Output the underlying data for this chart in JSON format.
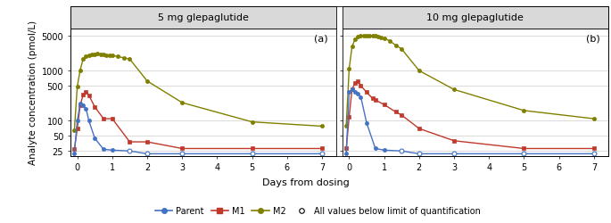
{
  "panel_a_title": "5 mg glepaglutide",
  "panel_b_title": "10 mg glepaglutide",
  "panel_a_label": "(a)",
  "panel_b_label": "(b)",
  "ylabel": "Analyte concentration (pmol/L)",
  "xlabel": "Days from dosing",
  "ylim_log": [
    20,
    7000
  ],
  "yticks": [
    25,
    50,
    100,
    500,
    1000,
    5000
  ],
  "ytick_labels": [
    "25",
    "50",
    "100",
    "500",
    "1000",
    "5000"
  ],
  "xlim": [
    -0.2,
    7.4
  ],
  "xticks": [
    0,
    1,
    2,
    3,
    4,
    5,
    6,
    7
  ],
  "colors": {
    "parent": "#4472C4",
    "M1": "#C0392B",
    "M2": "#808000"
  },
  "panel_a": {
    "parent_x": [
      -0.083,
      0.0,
      0.083,
      0.167,
      0.25,
      0.333,
      0.5,
      0.75,
      1.0,
      1.5,
      2.0,
      3.0,
      5.0,
      7.0
    ],
    "parent_y": [
      22,
      100,
      220,
      200,
      175,
      100,
      45,
      27,
      26,
      25,
      22,
      22,
      22,
      22
    ],
    "parent_open": [
      false,
      false,
      false,
      false,
      false,
      false,
      false,
      false,
      false,
      true,
      true,
      true,
      true,
      true
    ],
    "M1_x": [
      -0.083,
      0.0,
      0.083,
      0.167,
      0.25,
      0.333,
      0.5,
      0.75,
      1.0,
      1.5,
      2.0,
      3.0,
      5.0,
      7.0
    ],
    "M1_y": [
      27,
      70,
      200,
      330,
      380,
      320,
      190,
      110,
      110,
      38,
      38,
      28,
      28,
      28
    ],
    "M2_x": [
      -0.083,
      0.0,
      0.083,
      0.167,
      0.25,
      0.333,
      0.417,
      0.5,
      0.583,
      0.667,
      0.75,
      0.833,
      0.917,
      1.0,
      1.167,
      1.333,
      1.5,
      2.0,
      3.0,
      5.0,
      7.0
    ],
    "M2_y": [
      65,
      480,
      1020,
      1700,
      1900,
      2050,
      2100,
      2130,
      2150,
      2140,
      2100,
      2050,
      2020,
      2010,
      1900,
      1800,
      1700,
      620,
      230,
      95,
      78
    ]
  },
  "panel_b": {
    "parent_x": [
      -0.083,
      0.0,
      0.083,
      0.167,
      0.25,
      0.333,
      0.5,
      0.75,
      1.0,
      1.5,
      2.0,
      3.0,
      5.0,
      7.0
    ],
    "parent_y": [
      22,
      380,
      430,
      380,
      350,
      300,
      90,
      28,
      26,
      25,
      22,
      22,
      22,
      22
    ],
    "parent_open": [
      false,
      false,
      false,
      false,
      false,
      false,
      false,
      false,
      false,
      true,
      true,
      true,
      true,
      true
    ],
    "M1_x": [
      -0.083,
      0.0,
      0.083,
      0.167,
      0.25,
      0.333,
      0.5,
      0.667,
      0.75,
      1.0,
      1.333,
      1.5,
      2.0,
      3.0,
      5.0,
      7.0
    ],
    "M1_y": [
      28,
      120,
      430,
      560,
      610,
      500,
      370,
      280,
      260,
      210,
      150,
      130,
      70,
      40,
      28,
      28
    ],
    "M2_x": [
      -0.083,
      0.0,
      0.083,
      0.167,
      0.25,
      0.333,
      0.417,
      0.5,
      0.583,
      0.667,
      0.75,
      0.833,
      0.917,
      1.0,
      1.167,
      1.333,
      1.5,
      2.0,
      3.0,
      5.0,
      7.0
    ],
    "M2_y": [
      80,
      1100,
      3000,
      4200,
      4700,
      4900,
      4950,
      4970,
      4960,
      4940,
      4900,
      4800,
      4600,
      4400,
      3900,
      3200,
      2700,
      1000,
      420,
      160,
      110
    ]
  },
  "title_bg_color": "#d9d9d9",
  "plot_bg_color": "#ffffff",
  "grid_color": "#cccccc"
}
